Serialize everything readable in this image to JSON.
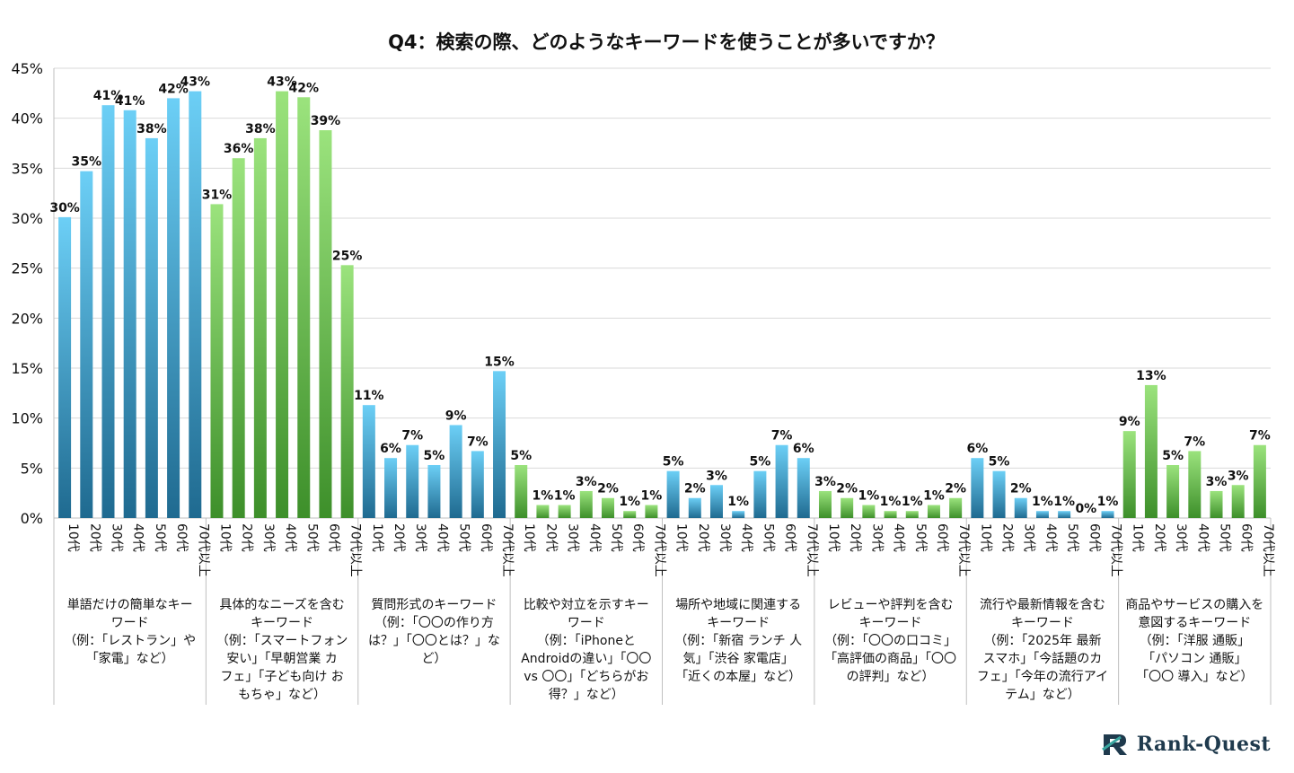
{
  "chart_data": {
    "type": "bar",
    "title": "Q4：検索の際、どのようなキーワードを使うことが多いですか？",
    "ylim": [
      0,
      45
    ],
    "y_ticks": [
      "0%",
      "5%",
      "10%",
      "15%",
      "20%",
      "25%",
      "30%",
      "35%",
      "40%",
      "45%"
    ],
    "age_labels": [
      "10代",
      "20代",
      "30代",
      "40代",
      "50代",
      "60代",
      "70代以上"
    ],
    "groups": [
      {
        "name": "単語だけの簡単なキーワード\n（例：「レストラン」や「家電」など）",
        "color": "blue",
        "values": [
          30,
          35,
          41,
          41,
          38,
          42,
          43
        ],
        "labels": [
          "30%",
          "35%",
          "41%",
          "41%",
          "38%",
          "42%",
          "43%"
        ],
        "value_exact": [
          30.1,
          34.7,
          41.3,
          40.8,
          38.0,
          42.0,
          42.7
        ]
      },
      {
        "name": "具体的なニーズを含むキーワード\n（例：「スマートフォン 安い」「早朝営業 カフェ」「子ども向け おもちゃ」など）",
        "color": "green",
        "values": [
          31,
          36,
          38,
          43,
          42,
          39,
          25
        ],
        "labels": [
          "31%",
          "36%",
          "38%",
          "43%",
          "42%",
          "39%",
          "25%"
        ],
        "value_exact": [
          31.4,
          36.0,
          38.0,
          42.7,
          42.1,
          38.8,
          25.3
        ]
      },
      {
        "name": "質問形式のキーワード\n（例：「〇〇の作り方は？」「〇〇とは？」など）",
        "color": "blue",
        "values": [
          11,
          6,
          7,
          5,
          9,
          7,
          15
        ],
        "labels": [
          "11%",
          "6%",
          "7%",
          "5%",
          "9%",
          "7%",
          "15%"
        ],
        "value_exact": [
          11.3,
          6.0,
          7.3,
          5.3,
          9.3,
          6.7,
          14.7
        ]
      },
      {
        "name": "比較や対立を示すキーワード\n（例：「iPhoneとAndroidの違い」「〇〇 vs 〇〇」「どちらがお得？」など）",
        "color": "green",
        "values": [
          5,
          1,
          1,
          3,
          2,
          1,
          1
        ],
        "labels": [
          "5%",
          "1%",
          "1%",
          "3%",
          "2%",
          "1%",
          "1%"
        ],
        "value_exact": [
          5.3,
          1.3,
          1.3,
          2.7,
          2.0,
          0.7,
          1.3
        ]
      },
      {
        "name": "場所や地域に関連するキーワード\n（例：「新宿 ランチ 人気」「渋谷 家電店」「近くの本屋」など）",
        "color": "blue",
        "values": [
          5,
          2,
          3,
          1,
          5,
          7,
          6
        ],
        "labels": [
          "5%",
          "2%",
          "3%",
          "1%",
          "5%",
          "7%",
          "6%"
        ],
        "value_exact": [
          4.7,
          2.0,
          3.3,
          0.7,
          4.7,
          7.3,
          6.0
        ]
      },
      {
        "name": "レビューや評判を含むキーワード\n（例：「〇〇の口コミ」「高評価の商品」「〇〇の評判」など）",
        "color": "green",
        "values": [
          3,
          2,
          1,
          1,
          1,
          1,
          2
        ],
        "labels": [
          "3%",
          "2%",
          "1%",
          "1%",
          "1%",
          "1%",
          "2%"
        ],
        "value_exact": [
          2.7,
          2.0,
          1.3,
          0.7,
          0.7,
          1.3,
          2.0
        ]
      },
      {
        "name": "流行や最新情報を含むキーワード\n（例：「2025年 最新スマホ」「今話題のカフェ」「今年の流行アイテム」など）",
        "color": "blue",
        "values": [
          6,
          5,
          2,
          1,
          1,
          0,
          1
        ],
        "labels": [
          "6%",
          "5%",
          "2%",
          "1%",
          "1%",
          "0%",
          "1%"
        ],
        "value_exact": [
          6.0,
          4.7,
          2.0,
          0.7,
          0.7,
          0.0,
          0.7
        ]
      },
      {
        "name": "商品やサービスの購入を意図するキーワード\n（例：「洋服 通販」「パソコン 通販」「〇〇 導入」など）",
        "color": "green",
        "values": [
          9,
          13,
          5,
          7,
          3,
          3,
          7
        ],
        "labels": [
          "9%",
          "13%",
          "5%",
          "7%",
          "3%",
          "3%",
          "7%"
        ],
        "value_exact": [
          8.7,
          13.3,
          5.3,
          6.7,
          2.7,
          3.3,
          7.3
        ]
      }
    ],
    "grid": true,
    "legend": "none"
  },
  "category_labels": [
    "単語だけの簡単なキー\nワード\n（例：「レストラン」や\n「家電」など）",
    "具体的なニーズを含む\nキーワード\n（例：「スマートフォン\n安い」「早朝営業 カ\nフェ」「子ども向け お\nもちゃ」など）",
    "質問形式のキーワード\n（例：「〇〇の作り方\nは？」「〇〇とは？」な\nど）",
    "比較や対立を示すキー\nワード\n（例：「iPhoneと\nAndroidの違い」「〇〇\nvs 〇〇」「どちらがお\n得？」など）",
    "場所や地域に関連する\nキーワード\n（例：「新宿 ランチ 人\n気」「渋谷 家電店」\n「近くの本屋」など）",
    "レビューや評判を含む\nキーワード\n（例：「〇〇の口コミ」\n「高評価の商品」「〇〇\nの評判」など）",
    "流行や最新情報を含む\nキーワード\n（例：「2025年 最新\nスマホ」「今話題のカ\nフェ」「今年の流行アイ\nテム」など）",
    "商品やサービスの購入を\n意図するキーワード\n（例：「洋服 通販」\n「パソコン 通販」\n「〇〇 導入」など）"
  ],
  "logo": {
    "text": "Rank-Quest",
    "icon": "rank-quest-logo-icon"
  },
  "colors": {
    "blue_top": "#6ccff6",
    "blue_bottom": "#1f6a90",
    "green_top": "#9be37d",
    "green_bottom": "#3d8f2a",
    "logo": "#1f3a4d",
    "logo_accent": "#3aa6a0"
  }
}
